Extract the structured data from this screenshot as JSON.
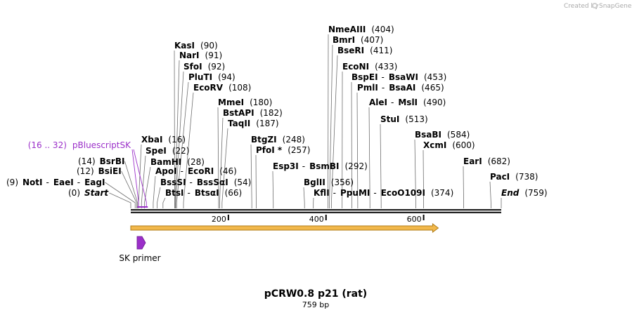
{
  "credit": {
    "text": "Created by",
    "brand": "SnapGene"
  },
  "title": "pCRW0.8 p21 (rat)",
  "subtitle": "759 bp",
  "total_bp": 759,
  "colors": {
    "feature": "#9b2fc9",
    "orf_fill": "#f2b84b",
    "orf_stroke": "#b07d18",
    "line": "#6e6e6e"
  },
  "ruler": [
    {
      "bp": 200,
      "label": "200"
    },
    {
      "bp": 400,
      "label": "400"
    },
    {
      "bp": 600,
      "label": "600"
    }
  ],
  "features": [
    {
      "name": "pBluescriptSK",
      "range": "(16 .. 32)",
      "start": 16,
      "end": 32
    },
    {
      "name": "SK primer",
      "start": 16,
      "end": 32
    }
  ],
  "orf": {
    "start": 0,
    "end": 630
  },
  "sites": [
    {
      "parts": [
        "KasI"
      ],
      "pos": "(90)",
      "bp": 90
    },
    {
      "parts": [
        "NarI"
      ],
      "pos": "(91)",
      "bp": 91
    },
    {
      "parts": [
        "SfoI"
      ],
      "pos": "(92)",
      "bp": 92
    },
    {
      "parts": [
        "PluTI"
      ],
      "pos": "(94)",
      "bp": 94
    },
    {
      "parts": [
        "EcoRV"
      ],
      "pos": "(108)",
      "bp": 108
    },
    {
      "parts": [
        "XbaI"
      ],
      "pos": "(16)",
      "bp": 16
    },
    {
      "parts": [
        "SpeI"
      ],
      "pos": "(22)",
      "bp": 22
    },
    {
      "parts": [
        "BamHI"
      ],
      "pos": "(28)",
      "bp": 28
    },
    {
      "parts": [
        "ApoI",
        "EcoRI"
      ],
      "pos": "(46)",
      "bp": 46
    },
    {
      "parts": [
        "BssSI",
        "BssSαI"
      ],
      "pos": "(54)",
      "bp": 54
    },
    {
      "parts": [
        "BtsI",
        "BtsαI"
      ],
      "pos": "(66)",
      "bp": 66
    },
    {
      "parts": [
        "BsrBI"
      ],
      "pos": "(14)",
      "bp": 14
    },
    {
      "parts": [
        "BsiEI"
      ],
      "pos": "(12)",
      "bp": 12
    },
    {
      "parts": [
        "NotI",
        "EaeI",
        "EagI"
      ],
      "pos": "(9)",
      "bp": 9
    },
    {
      "parts": [
        "Start"
      ],
      "pos": "(0)",
      "bp": 0,
      "italic": true
    },
    {
      "parts": [
        "MmeI"
      ],
      "pos": "(180)",
      "bp": 180
    },
    {
      "parts": [
        "BstAPI"
      ],
      "pos": "(182)",
      "bp": 182
    },
    {
      "parts": [
        "TaqII"
      ],
      "pos": "(187)",
      "bp": 187
    },
    {
      "parts": [
        "BtgZI"
      ],
      "pos": "(248)",
      "bp": 248
    },
    {
      "parts": [
        "PfoI *"
      ],
      "pos": "(257)",
      "bp": 257
    },
    {
      "parts": [
        "Esp3I",
        "BsmBI"
      ],
      "pos": "(292)",
      "bp": 292
    },
    {
      "parts": [
        "BglII"
      ],
      "pos": "(356)",
      "bp": 356
    },
    {
      "parts": [
        "KflI",
        "PpuMI",
        "EcoO109I"
      ],
      "pos": "(374)",
      "bp": 374
    },
    {
      "parts": [
        "NmeAIII"
      ],
      "pos": "(404)",
      "bp": 404
    },
    {
      "parts": [
        "BmrI"
      ],
      "pos": "(407)",
      "bp": 407
    },
    {
      "parts": [
        "BseRI"
      ],
      "pos": "(411)",
      "bp": 411
    },
    {
      "parts": [
        "EcoNI"
      ],
      "pos": "(433)",
      "bp": 433
    },
    {
      "parts": [
        "BspEI",
        "BsaWI"
      ],
      "pos": "(453)",
      "bp": 453
    },
    {
      "parts": [
        "PmlI",
        "BsaAI"
      ],
      "pos": "(465)",
      "bp": 465
    },
    {
      "parts": [
        "AleI",
        "MslI"
      ],
      "pos": "(490)",
      "bp": 490
    },
    {
      "parts": [
        "StuI"
      ],
      "pos": "(513)",
      "bp": 513
    },
    {
      "parts": [
        "BsaBI"
      ],
      "pos": "(584)",
      "bp": 584
    },
    {
      "parts": [
        "XcmI"
      ],
      "pos": "(600)",
      "bp": 600
    },
    {
      "parts": [
        "EarI"
      ],
      "pos": "(682)",
      "bp": 682
    },
    {
      "parts": [
        "PacI"
      ],
      "pos": "(738)",
      "bp": 738
    },
    {
      "parts": [
        "End"
      ],
      "pos": "(759)",
      "bp": 759,
      "italic": true
    }
  ]
}
